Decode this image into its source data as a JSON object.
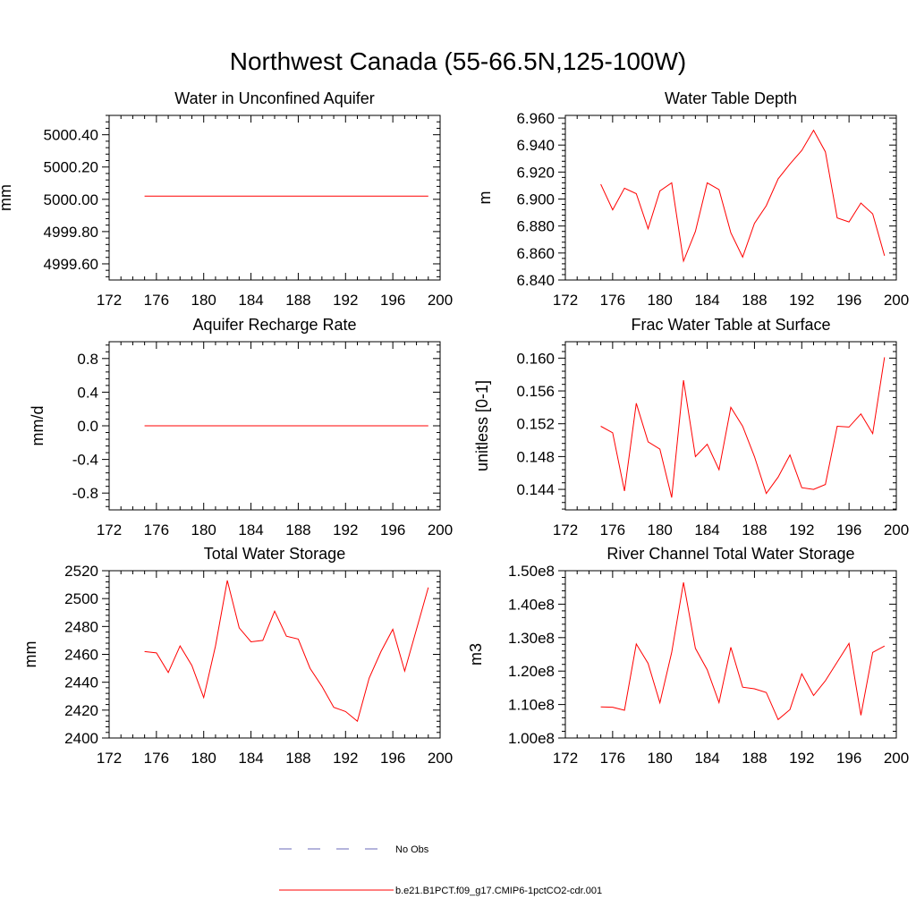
{
  "title": "Northwest Canada (55-66.5N,125-100W)",
  "legend": {
    "obs_label": "No Obs",
    "obs_color": "#6a6ab8",
    "model_label": "b.e21.B1PCT.f09_g17.CMIP6-1pctCO2-cdr.001",
    "model_color": "#ff0000"
  },
  "chart_data": [
    {
      "type": "line",
      "title": "Water in Unconfined Aquifer",
      "ylabel": "mm",
      "xlim": [
        172,
        200
      ],
      "ylim": [
        4999.5,
        5000.52
      ],
      "xticks": [
        "172",
        "176",
        "180",
        "184",
        "188",
        "192",
        "196",
        "200"
      ],
      "yticks": [
        {
          "value": 4999.6,
          "label": "4999.60"
        },
        {
          "value": 4999.8,
          "label": "4999.80"
        },
        {
          "value": 5000.0,
          "label": "5000.00"
        },
        {
          "value": 5000.2,
          "label": "5000.20"
        },
        {
          "value": 5000.4,
          "label": "5000.40"
        }
      ],
      "series": [
        {
          "x": [
            175,
            199
          ],
          "values": [
            5000.02,
            5000.02
          ]
        }
      ]
    },
    {
      "type": "line",
      "title": "Water Table Depth",
      "ylabel": "m",
      "xlim": [
        172,
        200
      ],
      "ylim": [
        6.84,
        6.962
      ],
      "xticks": [
        "172",
        "176",
        "180",
        "184",
        "188",
        "192",
        "196",
        "200"
      ],
      "yticks": [
        {
          "value": 6.84,
          "label": "6.840"
        },
        {
          "value": 6.86,
          "label": "6.860"
        },
        {
          "value": 6.88,
          "label": "6.880"
        },
        {
          "value": 6.9,
          "label": "6.900"
        },
        {
          "value": 6.92,
          "label": "6.920"
        },
        {
          "value": 6.94,
          "label": "6.940"
        },
        {
          "value": 6.96,
          "label": "6.960"
        }
      ],
      "series": [
        {
          "x": [
            175,
            176,
            177,
            178,
            179,
            180,
            181,
            182,
            183,
            184,
            185,
            186,
            187,
            188,
            189,
            190,
            191,
            192,
            193,
            194,
            195,
            196,
            197,
            198,
            199
          ],
          "values": [
            6.911,
            6.892,
            6.908,
            6.904,
            6.878,
            6.906,
            6.912,
            6.854,
            6.876,
            6.912,
            6.907,
            6.875,
            6.857,
            6.882,
            6.895,
            6.915,
            6.926,
            6.936,
            6.951,
            6.935,
            6.886,
            6.883,
            6.897,
            6.889,
            6.858
          ]
        }
      ]
    },
    {
      "type": "line",
      "title": "Aquifer Recharge Rate",
      "ylabel": "mm/d",
      "xlim": [
        172,
        200
      ],
      "ylim": [
        -1.0,
        1.0
      ],
      "xticks": [
        "172",
        "176",
        "180",
        "184",
        "188",
        "192",
        "196",
        "200"
      ],
      "yticks": [
        {
          "value": -0.8,
          "label": "-0.8"
        },
        {
          "value": -0.4,
          "label": "-0.4"
        },
        {
          "value": 0.0,
          "label": "0.0"
        },
        {
          "value": 0.4,
          "label": "0.4"
        },
        {
          "value": 0.8,
          "label": "0.8"
        }
      ],
      "series": [
        {
          "x": [
            175,
            199
          ],
          "values": [
            0.0,
            0.0
          ]
        }
      ]
    },
    {
      "type": "line",
      "title": "Frac Water Table at Surface",
      "ylabel": "unitless [0-1]",
      "xlim": [
        172,
        200
      ],
      "ylim": [
        0.1415,
        0.162
      ],
      "xticks": [
        "172",
        "176",
        "180",
        "184",
        "188",
        "192",
        "196",
        "200"
      ],
      "yticks": [
        {
          "value": 0.144,
          "label": "0.144"
        },
        {
          "value": 0.148,
          "label": "0.148"
        },
        {
          "value": 0.152,
          "label": "0.152"
        },
        {
          "value": 0.156,
          "label": "0.156"
        },
        {
          "value": 0.16,
          "label": "0.160"
        }
      ],
      "series": [
        {
          "x": [
            175,
            176,
            177,
            178,
            179,
            180,
            181,
            182,
            183,
            184,
            185,
            186,
            187,
            188,
            189,
            190,
            191,
            192,
            193,
            194,
            195,
            196,
            197,
            198,
            199
          ],
          "values": [
            0.1517,
            0.1509,
            0.1438,
            0.1545,
            0.1498,
            0.1489,
            0.143,
            0.1573,
            0.148,
            0.1495,
            0.1464,
            0.154,
            0.1517,
            0.148,
            0.1435,
            0.1455,
            0.1482,
            0.1442,
            0.144,
            0.1446,
            0.1517,
            0.1516,
            0.1532,
            0.1508,
            0.1601
          ]
        }
      ]
    },
    {
      "type": "line",
      "title": "Total Water Storage",
      "ylabel": "mm",
      "xlim": [
        172,
        200
      ],
      "ylim": [
        2400,
        2520
      ],
      "xticks": [
        "172",
        "176",
        "180",
        "184",
        "188",
        "192",
        "196",
        "200"
      ],
      "yticks": [
        {
          "value": 2400,
          "label": "2400"
        },
        {
          "value": 2420,
          "label": "2420"
        },
        {
          "value": 2440,
          "label": "2440"
        },
        {
          "value": 2460,
          "label": "2460"
        },
        {
          "value": 2480,
          "label": "2480"
        },
        {
          "value": 2500,
          "label": "2500"
        },
        {
          "value": 2520,
          "label": "2520"
        }
      ],
      "series": [
        {
          "x": [
            175,
            176,
            177,
            178,
            179,
            180,
            181,
            182,
            183,
            184,
            185,
            186,
            187,
            188,
            189,
            190,
            191,
            192,
            193,
            194,
            195,
            196,
            197,
            198,
            199
          ],
          "values": [
            2462,
            2461,
            2447,
            2466,
            2452,
            2429,
            2466,
            2513,
            2479,
            2469,
            2470,
            2491,
            2473,
            2471,
            2450,
            2437,
            2422,
            2419,
            2412,
            2443,
            2462,
            2478,
            2448,
            2478,
            2508
          ]
        }
      ]
    },
    {
      "type": "line",
      "title": "River Channel Total Water Storage",
      "ylabel": "m3",
      "xlim": [
        172,
        200
      ],
      "ylim": [
        1.0,
        1.5
      ],
      "xticks": [
        "172",
        "176",
        "180",
        "184",
        "188",
        "192",
        "196",
        "200"
      ],
      "yticks": [
        {
          "value": 1.0,
          "label": "1.00e8"
        },
        {
          "value": 1.1,
          "label": "1.10e8"
        },
        {
          "value": 1.2,
          "label": "1.20e8"
        },
        {
          "value": 1.3,
          "label": "1.30e8"
        },
        {
          "value": 1.4,
          "label": "1.40e8"
        },
        {
          "value": 1.5,
          "label": "1.50e8"
        }
      ],
      "series": [
        {
          "x": [
            175,
            176,
            177,
            178,
            179,
            180,
            181,
            182,
            183,
            184,
            185,
            186,
            187,
            188,
            189,
            190,
            191,
            192,
            193,
            194,
            195,
            196,
            197,
            198,
            199
          ],
          "values": [
            1.093,
            1.092,
            1.083,
            1.281,
            1.223,
            1.105,
            1.256,
            1.465,
            1.268,
            1.204,
            1.106,
            1.271,
            1.152,
            1.147,
            1.136,
            1.055,
            1.085,
            1.192,
            1.127,
            1.171,
            1.227,
            1.283,
            1.068,
            1.256,
            1.275
          ]
        }
      ]
    }
  ]
}
